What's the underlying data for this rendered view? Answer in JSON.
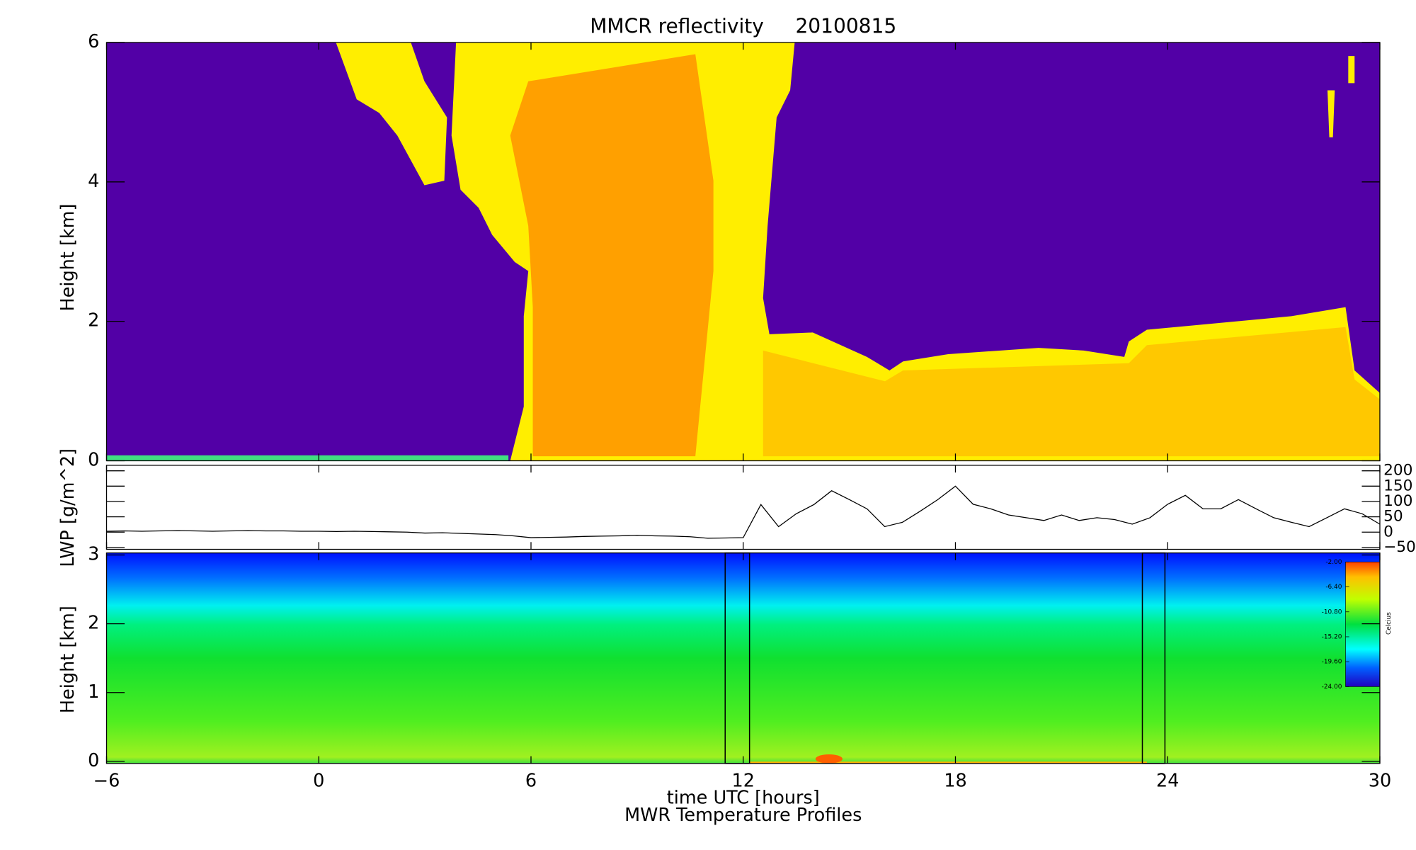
{
  "chart_data": [
    {
      "type": "heatmap",
      "title": "MMCR reflectivity     20100815",
      "ylabel": "Height [km]",
      "xlim": [
        -6,
        30
      ],
      "xticks": [
        -6,
        0,
        6,
        12,
        18,
        24,
        30
      ],
      "ylim": [
        0,
        6
      ],
      "yticks": [
        0,
        2,
        4,
        6
      ]
    },
    {
      "type": "line",
      "ylabel": "LWP [g/m^2]",
      "color": "#000000",
      "xlim": [
        -6,
        30
      ],
      "xticks": [
        -6,
        0,
        6,
        12,
        18,
        24,
        30
      ],
      "ylim": [
        -56,
        218
      ],
      "yticks": [
        -50,
        0,
        50,
        100,
        150,
        200
      ],
      "x": [
        -6,
        -5.5,
        -5,
        -4.5,
        -4,
        -3.5,
        -3,
        -2.5,
        -2,
        -1.5,
        -1,
        -0.5,
        0,
        0.5,
        1,
        1.5,
        2,
        2.5,
        3,
        3.5,
        4,
        4.5,
        5,
        5.5,
        6,
        6.5,
        7,
        7.5,
        8,
        8.5,
        9,
        9.5,
        10,
        10.5,
        11,
        11.5,
        12,
        12.5,
        13,
        13.5,
        14,
        14.5,
        15,
        15.5,
        16,
        16.5,
        17,
        17.5,
        18,
        18.5,
        19,
        19.5,
        20,
        20.5,
        21,
        21.5,
        22,
        22.5,
        23,
        23.5,
        24,
        24.5,
        25,
        25.5,
        26,
        26.5,
        27,
        27.5,
        28,
        28.5,
        29,
        29.5,
        30
      ],
      "values": [
        3,
        4,
        3,
        4,
        5,
        4,
        3,
        4,
        5,
        4,
        4,
        3,
        3,
        2,
        3,
        2,
        1,
        0,
        -3,
        -2,
        -4,
        -6,
        -8,
        -12,
        -18,
        -17,
        -16,
        -14,
        -13,
        -12,
        -10,
        -12,
        -13,
        -15,
        -20,
        -19,
        -18,
        90,
        18,
        60,
        90,
        135,
        106,
        76,
        18,
        32,
        68,
        106,
        150,
        91,
        76,
        56,
        47,
        38,
        56,
        38,
        47,
        41,
        26,
        47,
        91,
        120,
        76,
        76,
        106,
        76,
        47,
        32,
        18,
        47,
        76,
        60,
        26
      ]
    },
    {
      "type": "contour",
      "ylabel": "Height [km]",
      "xlabel": "time UTC [hours]",
      "subtitle": "MWR Temperature Profiles",
      "xlim": [
        -6,
        30
      ],
      "xticks": [
        -6,
        0,
        6,
        12,
        18,
        24,
        30
      ],
      "ylim": [
        -0.03,
        3.03
      ],
      "yticks": [
        0,
        1,
        2,
        3
      ],
      "colorbar": {
        "label": "Celcius",
        "lim": [
          -24,
          -2
        ],
        "ticks": [
          {
            "value": -2,
            "label": "-2.00"
          },
          {
            "value": -6.4,
            "label": "-6.40"
          },
          {
            "value": -10.8,
            "label": "-10.80"
          },
          {
            "value": -15.2,
            "label": "-15.20"
          },
          {
            "value": -19.6,
            "label": "-19.60"
          },
          {
            "value": -24,
            "label": "-24.00"
          }
        ]
      }
    }
  ]
}
